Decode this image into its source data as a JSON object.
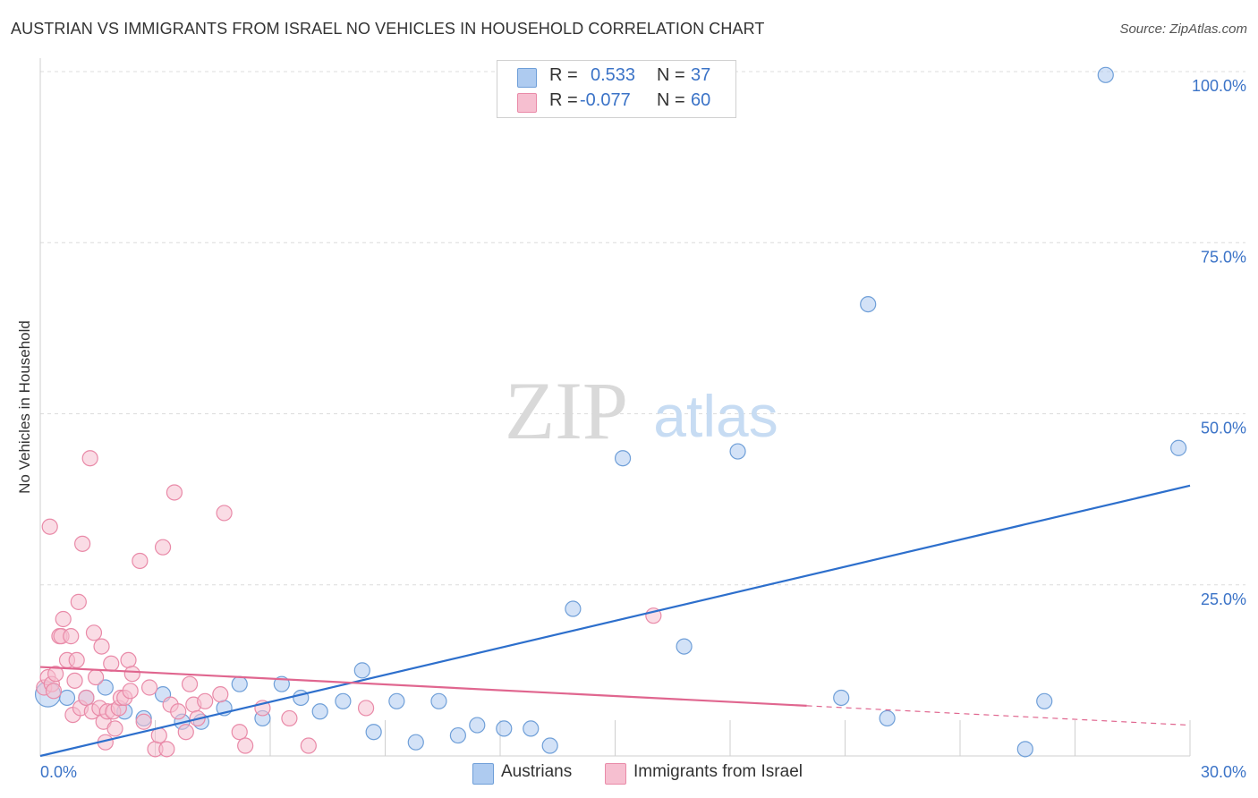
{
  "header": {
    "title": "AUSTRIAN VS IMMIGRANTS FROM ISRAEL NO VEHICLES IN HOUSEHOLD CORRELATION CHART",
    "source": "Source: ZipAtlas.com"
  },
  "legend": {
    "row1": {
      "r_label": "R =",
      "r_value": "0.533",
      "n_label": "N =",
      "n_value": "37"
    },
    "row2": {
      "r_label": "R =",
      "r_value": "-0.077",
      "n_label": "N =",
      "n_value": "60"
    }
  },
  "bottom_legend": {
    "austrians": "Austrians",
    "israel": "Immigrants from Israel"
  },
  "colors": {
    "blue_fill": "#aecbf0",
    "blue_stroke": "#6f9fd8",
    "blue_line": "#2d6fcc",
    "pink_fill": "#f6bfd0",
    "pink_stroke": "#e98aa8",
    "pink_line": "#e0668f",
    "tick_color": "#3b73c7"
  },
  "watermark": {
    "zip": "ZIP",
    "atlas": "atlas"
  },
  "chart_data": {
    "type": "scatter",
    "title": "AUSTRIAN VS IMMIGRANTS FROM ISRAEL NO VEHICLES IN HOUSEHOLD CORRELATION CHART",
    "xlabel": "",
    "ylabel": "No Vehicles in Household",
    "xlim": [
      0,
      30
    ],
    "ylim": [
      0,
      100
    ],
    "x_tick_labels": [
      "0.0%",
      "30.0%"
    ],
    "y_tick_labels": [
      {
        "value": 25,
        "label": "25.0%"
      },
      {
        "value": 50,
        "label": "50.0%"
      },
      {
        "value": 75,
        "label": "75.0%"
      },
      {
        "value": 100,
        "label": "100.0%"
      }
    ],
    "series": [
      {
        "name": "Austrians",
        "r": 0.533,
        "n": 37,
        "trend": {
          "x": [
            0,
            30
          ],
          "y": [
            0,
            39.5
          ],
          "dashed_from": null
        },
        "points": [
          {
            "x": 0.2,
            "y": 9,
            "big": true
          },
          {
            "x": 0.7,
            "y": 8.5
          },
          {
            "x": 1.2,
            "y": 8.5
          },
          {
            "x": 1.7,
            "y": 10
          },
          {
            "x": 2.2,
            "y": 6.5
          },
          {
            "x": 2.7,
            "y": 5.5
          },
          {
            "x": 3.2,
            "y": 9
          },
          {
            "x": 3.7,
            "y": 5
          },
          {
            "x": 4.2,
            "y": 5
          },
          {
            "x": 4.8,
            "y": 7
          },
          {
            "x": 5.2,
            "y": 10.5
          },
          {
            "x": 5.8,
            "y": 5.5
          },
          {
            "x": 6.3,
            "y": 10.5
          },
          {
            "x": 6.8,
            "y": 8.5
          },
          {
            "x": 7.3,
            "y": 6.5
          },
          {
            "x": 7.9,
            "y": 8
          },
          {
            "x": 8.4,
            "y": 12.5
          },
          {
            "x": 8.7,
            "y": 3.5
          },
          {
            "x": 9.3,
            "y": 8
          },
          {
            "x": 9.8,
            "y": 2
          },
          {
            "x": 10.4,
            "y": 8
          },
          {
            "x": 10.9,
            "y": 3
          },
          {
            "x": 11.4,
            "y": 4.5
          },
          {
            "x": 12.1,
            "y": 4
          },
          {
            "x": 12.8,
            "y": 4
          },
          {
            "x": 13.3,
            "y": 1.5
          },
          {
            "x": 13.9,
            "y": 21.5
          },
          {
            "x": 15.2,
            "y": 43.5
          },
          {
            "x": 16.8,
            "y": 16
          },
          {
            "x": 18.2,
            "y": 44.5
          },
          {
            "x": 20.9,
            "y": 8.5
          },
          {
            "x": 21.6,
            "y": 66
          },
          {
            "x": 22.1,
            "y": 5.5
          },
          {
            "x": 25.7,
            "y": 1
          },
          {
            "x": 26.2,
            "y": 8
          },
          {
            "x": 27.8,
            "y": 99.5
          },
          {
            "x": 29.7,
            "y": 45
          }
        ]
      },
      {
        "name": "Immigrants from Israel",
        "r": -0.077,
        "n": 60,
        "trend": {
          "x": [
            0,
            30
          ],
          "y": [
            13,
            4.5
          ],
          "solid_until": 20
        },
        "points": [
          {
            "x": 0.1,
            "y": 10
          },
          {
            "x": 0.2,
            "y": 11.5
          },
          {
            "x": 0.25,
            "y": 33.5
          },
          {
            "x": 0.3,
            "y": 10.5
          },
          {
            "x": 0.35,
            "y": 9.5
          },
          {
            "x": 0.4,
            "y": 12
          },
          {
            "x": 0.5,
            "y": 17.5
          },
          {
            "x": 0.55,
            "y": 17.5
          },
          {
            "x": 0.6,
            "y": 20
          },
          {
            "x": 0.7,
            "y": 14
          },
          {
            "x": 0.8,
            "y": 17.5
          },
          {
            "x": 0.85,
            "y": 6
          },
          {
            "x": 0.9,
            "y": 11
          },
          {
            "x": 0.95,
            "y": 14
          },
          {
            "x": 1.0,
            "y": 22.5
          },
          {
            "x": 1.05,
            "y": 7
          },
          {
            "x": 1.1,
            "y": 31
          },
          {
            "x": 1.2,
            "y": 8.5
          },
          {
            "x": 1.3,
            "y": 43.5
          },
          {
            "x": 1.35,
            "y": 6.5
          },
          {
            "x": 1.4,
            "y": 18
          },
          {
            "x": 1.45,
            "y": 11.5
          },
          {
            "x": 1.55,
            "y": 7
          },
          {
            "x": 1.6,
            "y": 16
          },
          {
            "x": 1.65,
            "y": 5
          },
          {
            "x": 1.7,
            "y": 2
          },
          {
            "x": 1.75,
            "y": 6.5
          },
          {
            "x": 1.85,
            "y": 13.5
          },
          {
            "x": 1.9,
            "y": 6.5
          },
          {
            "x": 1.95,
            "y": 4
          },
          {
            "x": 2.05,
            "y": 7
          },
          {
            "x": 2.1,
            "y": 8.5
          },
          {
            "x": 2.2,
            "y": 8.5
          },
          {
            "x": 2.3,
            "y": 14
          },
          {
            "x": 2.35,
            "y": 9.5
          },
          {
            "x": 2.4,
            "y": 12
          },
          {
            "x": 2.6,
            "y": 28.5
          },
          {
            "x": 2.7,
            "y": 5
          },
          {
            "x": 2.85,
            "y": 10
          },
          {
            "x": 3.0,
            "y": 1
          },
          {
            "x": 3.1,
            "y": 3
          },
          {
            "x": 3.2,
            "y": 30.5
          },
          {
            "x": 3.3,
            "y": 1
          },
          {
            "x": 3.4,
            "y": 7.5
          },
          {
            "x": 3.5,
            "y": 38.5
          },
          {
            "x": 3.8,
            "y": 3.5
          },
          {
            "x": 3.9,
            "y": 10.5
          },
          {
            "x": 4.0,
            "y": 7.5
          },
          {
            "x": 4.1,
            "y": 5.5
          },
          {
            "x": 4.3,
            "y": 8
          },
          {
            "x": 4.7,
            "y": 9
          },
          {
            "x": 4.8,
            "y": 35.5
          },
          {
            "x": 5.2,
            "y": 3.5
          },
          {
            "x": 5.35,
            "y": 1.5
          },
          {
            "x": 5.8,
            "y": 7
          },
          {
            "x": 6.5,
            "y": 5.5
          },
          {
            "x": 7.0,
            "y": 1.5
          },
          {
            "x": 8.5,
            "y": 7
          },
          {
            "x": 16.0,
            "y": 20.5
          },
          {
            "x": 3.6,
            "y": 6.5
          }
        ]
      }
    ]
  }
}
